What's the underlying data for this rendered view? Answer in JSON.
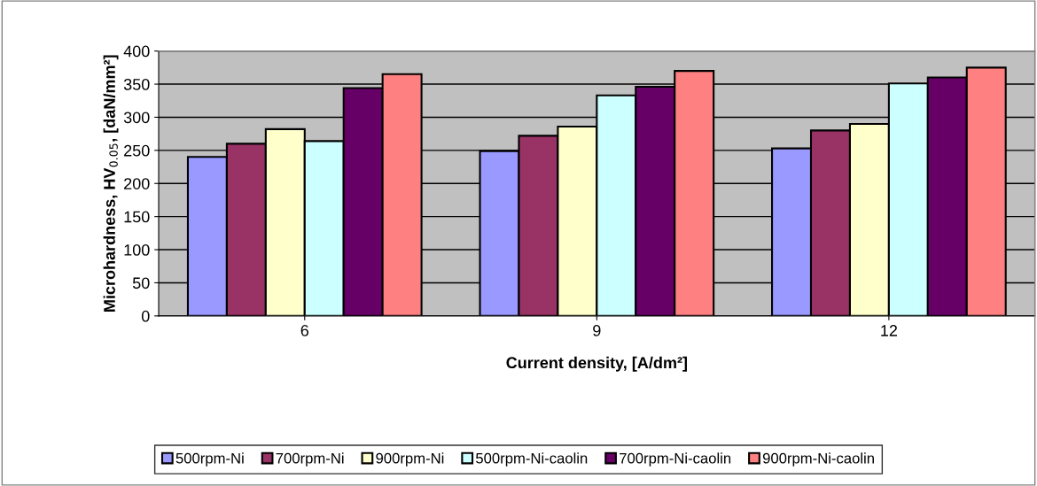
{
  "chart_data": {
    "type": "bar",
    "xlabel": "Current density, [A/dm²]",
    "ylabel": "Microhardness, HV$_{0.05}$, [daN/mm²]",
    "categories": [
      "6",
      "9",
      "12"
    ],
    "series": [
      {
        "name": "500rpm-Ni",
        "color": "#9999ff",
        "values": [
          240,
          249,
          253
        ]
      },
      {
        "name": "700rpm-Ni",
        "color": "#993366",
        "values": [
          260,
          272,
          280
        ]
      },
      {
        "name": "900rpm-Ni",
        "color": "#ffffcc",
        "values": [
          282,
          286,
          290
        ]
      },
      {
        "name": "500rpm-Ni-caolin",
        "color": "#ccffff",
        "values": [
          264,
          333,
          351
        ]
      },
      {
        "name": "700rpm-Ni-caolin",
        "color": "#660066",
        "values": [
          344,
          346,
          360
        ]
      },
      {
        "name": "900rpm-Ni-caolin",
        "color": "#ff8080",
        "values": [
          365,
          370,
          375
        ]
      }
    ],
    "ylim": [
      0,
      400
    ],
    "yticks": [
      0,
      50,
      100,
      150,
      200,
      250,
      300,
      350,
      400
    ],
    "grid": "y",
    "legend": "bottom"
  }
}
